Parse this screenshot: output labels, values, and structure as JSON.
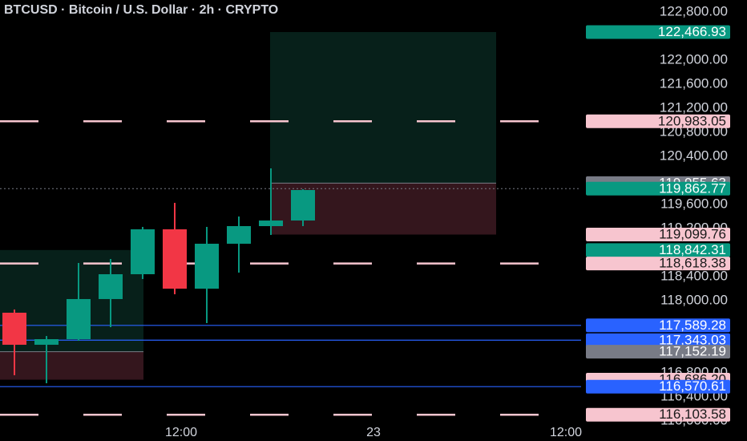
{
  "chart_data": {
    "type": "candlestick",
    "title": "BTCUSD · Bitcoin / U.S. Dollar · 2h · CRYPTO",
    "x": [
      0,
      1,
      2,
      3,
      4,
      5,
      6,
      7,
      8,
      9
    ],
    "open": [
      117800,
      117267,
      117360,
      118027,
      118440,
      119187,
      118200,
      118947,
      119240,
      119333
    ],
    "high": [
      117853,
      117413,
      118627,
      118693,
      119227,
      119627,
      119227,
      119400,
      120200,
      119853
    ],
    "low": [
      116760,
      116627,
      117333,
      117560,
      118360,
      118107,
      117627,
      118467,
      119093,
      119240
    ],
    "close": [
      117267,
      117360,
      118027,
      118440,
      119187,
      118200,
      118947,
      119240,
      119333,
      119840
    ],
    "up_color": "#089981",
    "down_color": "#f23645",
    "xlim": [
      -0.45,
      17.675
    ],
    "xticks": [
      {
        "value": 5.2,
        "label": "12:00"
      },
      {
        "value": 11.2,
        "label": "23"
      },
      {
        "value": 17.2,
        "label": "12:00"
      }
    ],
    "ylim": [
      116000,
      123000
    ],
    "yticks": [
      {
        "value": 116000,
        "label": "116,000.00"
      },
      {
        "value": 116400,
        "label": "116,400.00"
      },
      {
        "value": 116800,
        "label": "116,800.00"
      },
      {
        "value": 118000,
        "label": "118,000.00"
      },
      {
        "value": 118400,
        "label": "118,400.00"
      },
      {
        "value": 119200,
        "label": "119,200.00"
      },
      {
        "value": 119600,
        "label": "119,600.00"
      },
      {
        "value": 120400,
        "label": "120,400.00"
      },
      {
        "value": 120800,
        "label": "120,800.00"
      },
      {
        "value": 121200,
        "label": "121,200.00"
      },
      {
        "value": 121600,
        "label": "121,600.00"
      },
      {
        "value": 122000,
        "label": "122,000.00"
      },
      {
        "value": 122800,
        "label": "122,800.00"
      }
    ],
    "positions": [
      {
        "x": [
          7.975,
          15.025
        ],
        "target": 122466.93,
        "entry": 119955.63,
        "stop": 119099.76
      },
      {
        "x": [
          -0.45,
          4.025
        ],
        "target": 118842.31,
        "entry": 117152.19,
        "stop": 116686.2
      }
    ],
    "price_lines": [
      {
        "value": 122466.93,
        "label": "122,466.93",
        "color": "#089981",
        "text_color": "#ffffff",
        "line": "none"
      },
      {
        "value": 120983.05,
        "label": "120,983.05",
        "color": "#f7c5cf",
        "text_color": "#1a1a1a",
        "line": "dash"
      },
      {
        "value": 119955.63,
        "label": "119,955.63",
        "color": "#787b86",
        "text_color": "#ffffff",
        "line": "none"
      },
      {
        "value": 119862.77,
        "label": "119,862.77",
        "color": "#089981",
        "text_color": "#ffffff",
        "line": "dot"
      },
      {
        "value": 119099.76,
        "label": "119,099.76",
        "color": "#f7c5cf",
        "text_color": "#1a1a1a",
        "line": "none"
      },
      {
        "value": 118842.31,
        "label": "118,842.31",
        "color": "#089981",
        "text_color": "#ffffff",
        "line": "none"
      },
      {
        "value": 118618.38,
        "label": "118,618.38",
        "color": "#f7c5cf",
        "text_color": "#1a1a1a",
        "line": "dash"
      },
      {
        "value": 117589.28,
        "label": "117,589.28",
        "color": "#2962ff",
        "text_color": "#ffffff",
        "line": "solid"
      },
      {
        "value": 117343.03,
        "label": "117,343.03",
        "color": "#2962ff",
        "text_color": "#ffffff",
        "line": "solid"
      },
      {
        "value": 117152.19,
        "label": "117,152.19",
        "color": "#787b86",
        "text_color": "#ffffff",
        "line": "none"
      },
      {
        "value": 116686.2,
        "label": "116,686.20",
        "color": "#f7c5cf",
        "text_color": "#1a1a1a",
        "line": "none"
      },
      {
        "value": 116570.61,
        "label": "116,570.61",
        "color": "#2962ff",
        "text_color": "#ffffff",
        "line": "solid"
      },
      {
        "value": 116103.58,
        "label": "116,103.58",
        "color": "#f7c5cf",
        "text_color": "#1a1a1a",
        "line": "dash"
      }
    ]
  }
}
